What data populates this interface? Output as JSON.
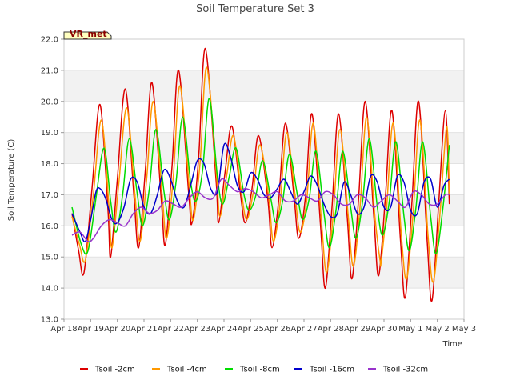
{
  "chart_data": {
    "type": "line",
    "title": "Soil Temperature Set 3",
    "xlabel": "Time",
    "ylabel": "Soil Temperature (C)",
    "ylim": [
      13.0,
      22.0
    ],
    "yticks": [
      13.0,
      14.0,
      15.0,
      16.0,
      17.0,
      18.0,
      19.0,
      20.0,
      21.0,
      22.0
    ],
    "ytick_labels": [
      "13.0",
      "14.0",
      "15.0",
      "16.0",
      "17.0",
      "18.0",
      "19.0",
      "20.0",
      "21.0",
      "22.0"
    ],
    "xlim": [
      0,
      15
    ],
    "xticks": [
      0,
      1,
      2,
      3,
      4,
      5,
      6,
      7,
      8,
      9,
      10,
      11,
      12,
      13,
      14,
      15
    ],
    "xtick_labels": [
      "Apr 18",
      "Apr 19",
      "Apr 20",
      "Apr 21",
      "Apr 22",
      "Apr 23",
      "Apr 24",
      "Apr 25",
      "Apr 26",
      "Apr 27",
      "Apr 28",
      "Apr 29",
      "Apr 30",
      "May 1",
      "May 2",
      "May 3"
    ],
    "grid": "horizontal bands",
    "legend_position": "bottom",
    "badge": "VR_met",
    "x_unit": "days since Apr 18",
    "series": [
      {
        "name": "Tsoil -2cm",
        "color": "#dd0000",
        "x": [
          0.3,
          0.55,
          0.75,
          1.05,
          1.35,
          1.65,
          1.75,
          2.0,
          2.3,
          2.62,
          2.8,
          3.05,
          3.3,
          3.65,
          3.8,
          4.05,
          4.3,
          4.68,
          4.8,
          5.05,
          5.3,
          5.7,
          5.8,
          6.05,
          6.3,
          6.62,
          6.8,
          7.05,
          7.3,
          7.65,
          7.8,
          8.05,
          8.3,
          8.62,
          8.8,
          9.05,
          9.3,
          9.62,
          9.8,
          10.05,
          10.3,
          10.62,
          10.8,
          11.05,
          11.3,
          11.62,
          11.8,
          12.05,
          12.3,
          12.62,
          12.8,
          13.05,
          13.3,
          13.62,
          13.8,
          14.05,
          14.3,
          14.45
        ],
        "y": [
          16.4,
          15.2,
          14.5,
          17.2,
          19.9,
          16.5,
          15.0,
          17.5,
          20.4,
          17.0,
          15.3,
          17.8,
          20.6,
          16.8,
          15.4,
          17.9,
          21.0,
          17.0,
          16.1,
          18.2,
          21.7,
          17.5,
          16.1,
          17.8,
          19.2,
          17.0,
          16.1,
          17.2,
          18.9,
          16.8,
          15.3,
          16.8,
          19.3,
          17.0,
          15.6,
          16.9,
          19.6,
          16.0,
          14.0,
          16.6,
          19.6,
          16.3,
          14.3,
          16.9,
          20.0,
          16.3,
          14.4,
          16.9,
          19.7,
          15.5,
          13.7,
          16.8,
          20.0,
          15.5,
          13.6,
          16.7,
          19.7,
          16.7
        ]
      },
      {
        "name": "Tsoil -4cm",
        "color": "#ff9900",
        "x": [
          0.3,
          0.58,
          0.8,
          1.1,
          1.4,
          1.68,
          1.8,
          2.05,
          2.35,
          2.65,
          2.85,
          3.1,
          3.35,
          3.68,
          3.85,
          4.1,
          4.35,
          4.7,
          4.85,
          5.1,
          5.35,
          5.72,
          5.85,
          6.1,
          6.35,
          6.65,
          6.85,
          7.1,
          7.35,
          7.68,
          7.85,
          8.1,
          8.35,
          8.65,
          8.85,
          9.1,
          9.35,
          9.65,
          9.85,
          10.1,
          10.35,
          10.65,
          10.85,
          11.1,
          11.35,
          11.65,
          11.85,
          11.9,
          12.1,
          12.35,
          12.65,
          12.85,
          13.1,
          13.35,
          13.65,
          13.85,
          14.1,
          14.35,
          14.45
        ],
        "y": [
          16.3,
          15.4,
          14.9,
          17.0,
          19.4,
          16.7,
          15.3,
          17.3,
          19.8,
          17.1,
          15.5,
          17.5,
          20.0,
          17.0,
          15.6,
          17.6,
          20.5,
          17.2,
          16.2,
          18.0,
          21.1,
          17.6,
          16.3,
          17.6,
          18.9,
          17.1,
          16.2,
          17.1,
          18.6,
          16.9,
          15.5,
          16.7,
          19.0,
          17.1,
          15.8,
          16.8,
          19.3,
          16.2,
          14.5,
          16.4,
          19.1,
          16.4,
          14.7,
          16.6,
          19.5,
          16.4,
          14.9,
          14.9,
          16.6,
          19.3,
          15.7,
          14.3,
          16.5,
          19.4,
          15.7,
          14.2,
          16.4,
          19.2,
          17.0
        ]
      },
      {
        "name": "Tsoil -8cm",
        "color": "#00dd00",
        "x": [
          0.3,
          0.65,
          0.9,
          1.2,
          1.5,
          1.75,
          1.95,
          2.2,
          2.45,
          2.75,
          2.95,
          3.2,
          3.45,
          3.75,
          3.95,
          4.2,
          4.45,
          4.75,
          4.95,
          5.2,
          5.45,
          5.75,
          5.95,
          6.2,
          6.45,
          6.75,
          6.95,
          7.2,
          7.45,
          7.75,
          7.95,
          8.2,
          8.45,
          8.75,
          8.95,
          9.2,
          9.45,
          9.75,
          9.95,
          10.2,
          10.45,
          10.75,
          10.95,
          11.2,
          11.45,
          11.75,
          11.95,
          12.2,
          12.45,
          12.75,
          12.95,
          13.2,
          13.45,
          13.75,
          13.95,
          14.2,
          14.45
        ],
        "y": [
          16.6,
          15.4,
          15.2,
          16.9,
          18.5,
          16.8,
          15.8,
          17.0,
          18.8,
          17.0,
          16.0,
          17.2,
          19.1,
          17.1,
          16.2,
          17.4,
          19.5,
          17.4,
          16.8,
          17.8,
          20.1,
          17.6,
          16.7,
          17.6,
          18.5,
          17.0,
          16.5,
          17.0,
          18.1,
          16.9,
          16.1,
          16.8,
          18.3,
          17.0,
          16.2,
          16.9,
          18.4,
          16.4,
          15.3,
          16.5,
          18.4,
          16.6,
          15.6,
          16.8,
          18.8,
          16.6,
          15.7,
          16.8,
          18.7,
          16.3,
          15.2,
          16.6,
          18.7,
          16.3,
          15.1,
          16.5,
          18.6
        ]
      },
      {
        "name": "Tsoil -16cm",
        "color": "#0000cc",
        "x": [
          0.3,
          0.6,
          0.8,
          1.0,
          1.2,
          1.35,
          1.55,
          1.8,
          2.0,
          2.25,
          2.5,
          2.75,
          3.0,
          3.25,
          3.5,
          3.75,
          4.0,
          4.25,
          4.5,
          4.75,
          5.0,
          5.25,
          5.5,
          5.75,
          6.0,
          6.25,
          6.5,
          6.75,
          7.0,
          7.25,
          7.5,
          7.75,
          8.0,
          8.25,
          8.5,
          8.75,
          9.0,
          9.25,
          9.5,
          9.75,
          10.0,
          10.25,
          10.5,
          10.75,
          11.0,
          11.25,
          11.5,
          11.75,
          12.0,
          12.25,
          12.5,
          12.75,
          13.0,
          13.25,
          13.5,
          13.75,
          14.0,
          14.25,
          14.45
        ],
        "y": [
          16.4,
          15.8,
          15.5,
          16.2,
          17.1,
          17.2,
          16.9,
          16.2,
          16.1,
          16.6,
          17.5,
          17.4,
          16.6,
          16.4,
          17.0,
          17.8,
          17.5,
          16.8,
          16.6,
          17.3,
          18.1,
          18.0,
          17.2,
          17.1,
          18.6,
          18.2,
          17.3,
          17.1,
          17.7,
          17.5,
          17.0,
          16.9,
          17.2,
          17.5,
          17.1,
          16.7,
          17.1,
          17.6,
          17.3,
          16.7,
          16.3,
          16.4,
          17.4,
          17.0,
          16.4,
          16.6,
          17.6,
          17.4,
          16.6,
          16.6,
          17.6,
          17.4,
          16.5,
          16.4,
          17.4,
          17.5,
          16.6,
          17.3,
          17.5
        ]
      },
      {
        "name": "Tsoil -32cm",
        "color": "#9933cc",
        "x": [
          0.3,
          0.6,
          0.9,
          1.1,
          1.4,
          1.7,
          2.0,
          2.3,
          2.6,
          2.9,
          3.2,
          3.5,
          3.8,
          4.1,
          4.4,
          4.7,
          5.0,
          5.3,
          5.6,
          5.9,
          6.2,
          6.5,
          6.8,
          7.1,
          7.4,
          7.7,
          8.0,
          8.3,
          8.6,
          8.9,
          9.2,
          9.5,
          9.8,
          10.1,
          10.4,
          10.7,
          11.0,
          11.3,
          11.6,
          11.9,
          12.2,
          12.5,
          12.8,
          13.1,
          13.4,
          13.7,
          14.0,
          14.3,
          14.45
        ],
        "y": [
          15.7,
          15.8,
          15.5,
          15.6,
          16.0,
          16.2,
          16.1,
          16.0,
          16.4,
          16.6,
          16.4,
          16.5,
          16.8,
          16.7,
          16.6,
          16.9,
          17.1,
          16.9,
          16.9,
          17.5,
          17.3,
          17.1,
          17.2,
          17.1,
          16.9,
          17.0,
          17.1,
          16.8,
          16.8,
          17.0,
          16.9,
          16.8,
          17.1,
          17.0,
          16.7,
          16.7,
          17.0,
          16.9,
          16.6,
          16.8,
          17.0,
          16.8,
          16.6,
          17.1,
          17.0,
          16.7,
          16.7,
          17.0,
          17.0
        ]
      }
    ]
  }
}
